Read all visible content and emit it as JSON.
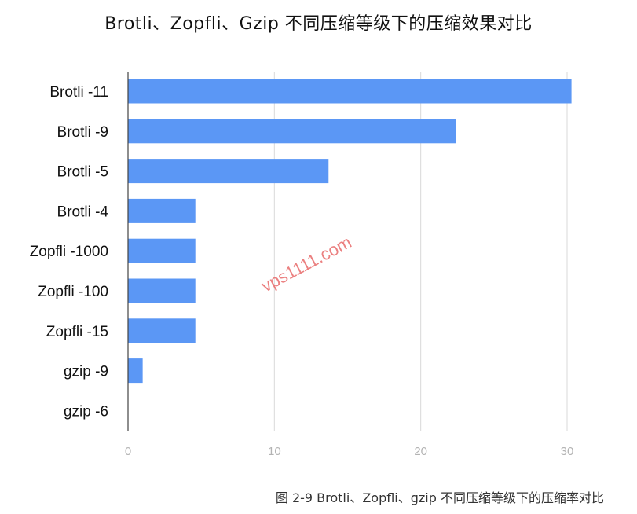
{
  "chart_data": {
    "type": "bar",
    "orientation": "horizontal",
    "title": "Brotli、Zopfli、Gzip 不同压缩等级下的压缩效果对比",
    "categories": [
      "Brotli -11",
      "Brotli -9",
      "Brotli -5",
      "Brotli -4",
      "Zopfli -1000",
      "Zopfli -100",
      "Zopfli -15",
      "gzip -9",
      "gzip -6"
    ],
    "values": [
      30.3,
      22.4,
      13.7,
      4.6,
      4.6,
      4.6,
      4.6,
      1.0,
      0
    ],
    "xlim": [
      0,
      30
    ],
    "ticks": [
      0,
      10,
      20,
      30
    ],
    "bar_color": "#5b97f5",
    "grid": true
  },
  "watermark": "vps1111.com",
  "caption": "图 2-9 Brotli、Zopfli、gzip 不同压缩等级下的压缩率对比"
}
